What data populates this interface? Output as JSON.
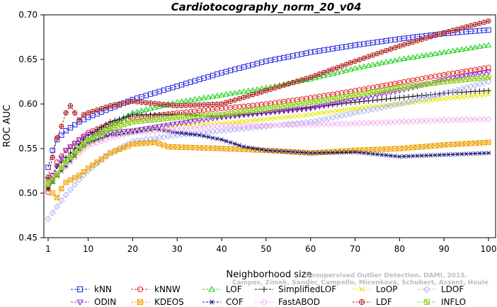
{
  "chart_data": {
    "type": "line",
    "title": "Cardiotocography_norm_20_v04",
    "xlabel": "Neighborhood size",
    "ylabel": "ROC AUC",
    "xlim": [
      1,
      100
    ],
    "ylim": [
      0.45,
      0.7
    ],
    "xticks": [
      1,
      10,
      20,
      30,
      40,
      50,
      60,
      70,
      80,
      90,
      100
    ],
    "yticks": [
      0.45,
      0.5,
      0.55,
      0.6,
      0.65,
      0.7
    ],
    "ytick_labels": [
      "0.45",
      "0.50",
      "0.55",
      "0.60",
      "0.65",
      "0.70"
    ],
    "grid": false,
    "legend_position": "bottom",
    "watermark": [
      "Campos, Zimek, Sander, Campello, Micenkova, Schubert, Assent, Houle",
      "Unsupervised Outlier Detection. DAMI, 2015."
    ],
    "series": [
      {
        "name": "kNN",
        "color": "#1f1fe0",
        "marker": "square",
        "knots": [
          [
            1,
            0.529
          ],
          [
            2,
            0.548
          ],
          [
            3,
            0.56
          ],
          [
            5,
            0.57
          ],
          [
            8,
            0.58
          ],
          [
            10,
            0.585
          ],
          [
            15,
            0.595
          ],
          [
            20,
            0.605
          ],
          [
            30,
            0.62
          ],
          [
            40,
            0.635
          ],
          [
            50,
            0.648
          ],
          [
            60,
            0.658
          ],
          [
            70,
            0.666
          ],
          [
            80,
            0.673
          ],
          [
            90,
            0.679
          ],
          [
            100,
            0.683
          ]
        ]
      },
      {
        "name": "kNNW",
        "color": "#e02020",
        "marker": "circle",
        "knots": [
          [
            1,
            0.501
          ],
          [
            2,
            0.52
          ],
          [
            3,
            0.535
          ],
          [
            5,
            0.548
          ],
          [
            8,
            0.56
          ],
          [
            10,
            0.568
          ],
          [
            15,
            0.578
          ],
          [
            20,
            0.584
          ],
          [
            30,
            0.59
          ],
          [
            40,
            0.595
          ],
          [
            50,
            0.6
          ],
          [
            60,
            0.607
          ],
          [
            70,
            0.615
          ],
          [
            80,
            0.624
          ],
          [
            90,
            0.633
          ],
          [
            100,
            0.641
          ]
        ]
      },
      {
        "name": "LOF",
        "color": "#20d020",
        "marker": "triangle-up",
        "knots": [
          [
            1,
            0.51
          ],
          [
            2,
            0.513
          ],
          [
            3,
            0.52
          ],
          [
            5,
            0.535
          ],
          [
            8,
            0.55
          ],
          [
            10,
            0.56
          ],
          [
            15,
            0.575
          ],
          [
            20,
            0.59
          ],
          [
            30,
            0.602
          ],
          [
            40,
            0.61
          ],
          [
            50,
            0.618
          ],
          [
            60,
            0.628
          ],
          [
            70,
            0.64
          ],
          [
            80,
            0.65
          ],
          [
            90,
            0.658
          ],
          [
            100,
            0.666
          ]
        ]
      },
      {
        "name": "SimplifiedLOF",
        "color": "#111111",
        "marker": "plus",
        "knots": [
          [
            1,
            0.505
          ],
          [
            2,
            0.515
          ],
          [
            3,
            0.53
          ],
          [
            5,
            0.54
          ],
          [
            8,
            0.555
          ],
          [
            10,
            0.565
          ],
          [
            15,
            0.58
          ],
          [
            20,
            0.588
          ],
          [
            30,
            0.588
          ],
          [
            40,
            0.586
          ],
          [
            50,
            0.59
          ],
          [
            60,
            0.596
          ],
          [
            70,
            0.602
          ],
          [
            80,
            0.607
          ],
          [
            90,
            0.612
          ],
          [
            100,
            0.615
          ]
        ]
      },
      {
        "name": "LoOP",
        "color": "#e6e600",
        "marker": "x",
        "knots": [
          [
            1,
            0.508
          ],
          [
            2,
            0.512
          ],
          [
            3,
            0.518
          ],
          [
            5,
            0.53
          ],
          [
            8,
            0.545
          ],
          [
            10,
            0.555
          ],
          [
            15,
            0.565
          ],
          [
            20,
            0.57
          ],
          [
            30,
            0.575
          ],
          [
            40,
            0.578
          ],
          [
            50,
            0.583
          ],
          [
            60,
            0.588
          ],
          [
            70,
            0.595
          ],
          [
            80,
            0.6
          ],
          [
            90,
            0.606
          ],
          [
            100,
            0.611
          ]
        ]
      },
      {
        "name": "LDOF",
        "color": "#b0b0f0",
        "marker": "diamond",
        "knots": [
          [
            1,
            0.471
          ],
          [
            2,
            0.478
          ],
          [
            3,
            0.485
          ],
          [
            5,
            0.498
          ],
          [
            8,
            0.515
          ],
          [
            10,
            0.525
          ],
          [
            15,
            0.545
          ],
          [
            20,
            0.558
          ],
          [
            30,
            0.565
          ],
          [
            40,
            0.57
          ],
          [
            50,
            0.575
          ],
          [
            60,
            0.58
          ],
          [
            70,
            0.59
          ],
          [
            80,
            0.6
          ],
          [
            90,
            0.612
          ],
          [
            100,
            0.625
          ]
        ]
      },
      {
        "name": "ODIN",
        "color": "#8a20d0",
        "marker": "triangle-down",
        "knots": [
          [
            1,
            0.515
          ],
          [
            2,
            0.52
          ],
          [
            3,
            0.53
          ],
          [
            5,
            0.548
          ],
          [
            8,
            0.56
          ],
          [
            10,
            0.566
          ],
          [
            15,
            0.568
          ],
          [
            20,
            0.57
          ],
          [
            30,
            0.578
          ],
          [
            40,
            0.585
          ],
          [
            50,
            0.59
          ],
          [
            60,
            0.595
          ],
          [
            70,
            0.605
          ],
          [
            80,
            0.615
          ],
          [
            90,
            0.627
          ],
          [
            100,
            0.636
          ]
        ]
      },
      {
        "name": "KDEOS",
        "color": "#f0a000",
        "marker": "square-x",
        "knots": [
          [
            1,
            0.506
          ],
          [
            2,
            0.5
          ],
          [
            3,
            0.495
          ],
          [
            4,
            0.505
          ],
          [
            5,
            0.512
          ],
          [
            8,
            0.52
          ],
          [
            10,
            0.528
          ],
          [
            15,
            0.545
          ],
          [
            20,
            0.555
          ],
          [
            25,
            0.557
          ],
          [
            28,
            0.552
          ],
          [
            40,
            0.55
          ],
          [
            50,
            0.548
          ],
          [
            60,
            0.545
          ],
          [
            70,
            0.548
          ],
          [
            80,
            0.55
          ],
          [
            90,
            0.554
          ],
          [
            100,
            0.557
          ]
        ]
      },
      {
        "name": "COF",
        "color": "#101070",
        "marker": "asterisk",
        "knots": [
          [
            1,
            0.505
          ],
          [
            3,
            0.52
          ],
          [
            5,
            0.53
          ],
          [
            8,
            0.548
          ],
          [
            10,
            0.556
          ],
          [
            15,
            0.565
          ],
          [
            20,
            0.568
          ],
          [
            25,
            0.572
          ],
          [
            30,
            0.568
          ],
          [
            35,
            0.565
          ],
          [
            40,
            0.56
          ],
          [
            45,
            0.552
          ],
          [
            50,
            0.548
          ],
          [
            60,
            0.545
          ],
          [
            70,
            0.546
          ],
          [
            80,
            0.541
          ],
          [
            90,
            0.543
          ],
          [
            100,
            0.545
          ]
        ]
      },
      {
        "name": "FastABOD",
        "color": "#f0b0f0",
        "marker": "diamond",
        "knots": [
          [
            1,
            0.512
          ],
          [
            2,
            0.518
          ],
          [
            3,
            0.522
          ],
          [
            5,
            0.53
          ],
          [
            8,
            0.545
          ],
          [
            10,
            0.553
          ],
          [
            15,
            0.562
          ],
          [
            20,
            0.568
          ],
          [
            30,
            0.572
          ],
          [
            40,
            0.575
          ],
          [
            50,
            0.576
          ],
          [
            60,
            0.577
          ],
          [
            70,
            0.578
          ],
          [
            80,
            0.58
          ],
          [
            90,
            0.582
          ],
          [
            100,
            0.583
          ]
        ]
      },
      {
        "name": "LDF",
        "color": "#b02020",
        "marker": "circle-plus",
        "knots": [
          [
            1,
            0.518
          ],
          [
            2,
            0.54
          ],
          [
            3,
            0.562
          ],
          [
            4,
            0.575
          ],
          [
            5,
            0.59
          ],
          [
            6,
            0.598
          ],
          [
            7,
            0.59
          ],
          [
            8,
            0.582
          ],
          [
            9,
            0.588
          ],
          [
            10,
            0.59
          ],
          [
            15,
            0.598
          ],
          [
            20,
            0.603
          ],
          [
            30,
            0.598
          ],
          [
            40,
            0.6
          ],
          [
            50,
            0.615
          ],
          [
            60,
            0.63
          ],
          [
            70,
            0.648
          ],
          [
            80,
            0.665
          ],
          [
            90,
            0.68
          ],
          [
            100,
            0.693
          ]
        ]
      },
      {
        "name": "INFLO",
        "color": "#90d020",
        "marker": "square-asterisk",
        "knots": [
          [
            1,
            0.512
          ],
          [
            2,
            0.515
          ],
          [
            3,
            0.522
          ],
          [
            5,
            0.535
          ],
          [
            8,
            0.55
          ],
          [
            10,
            0.56
          ],
          [
            15,
            0.572
          ],
          [
            20,
            0.58
          ],
          [
            30,
            0.585
          ],
          [
            40,
            0.588
          ],
          [
            50,
            0.595
          ],
          [
            60,
            0.602
          ],
          [
            70,
            0.61
          ],
          [
            80,
            0.618
          ],
          [
            90,
            0.625
          ],
          [
            100,
            0.63
          ]
        ]
      }
    ]
  }
}
